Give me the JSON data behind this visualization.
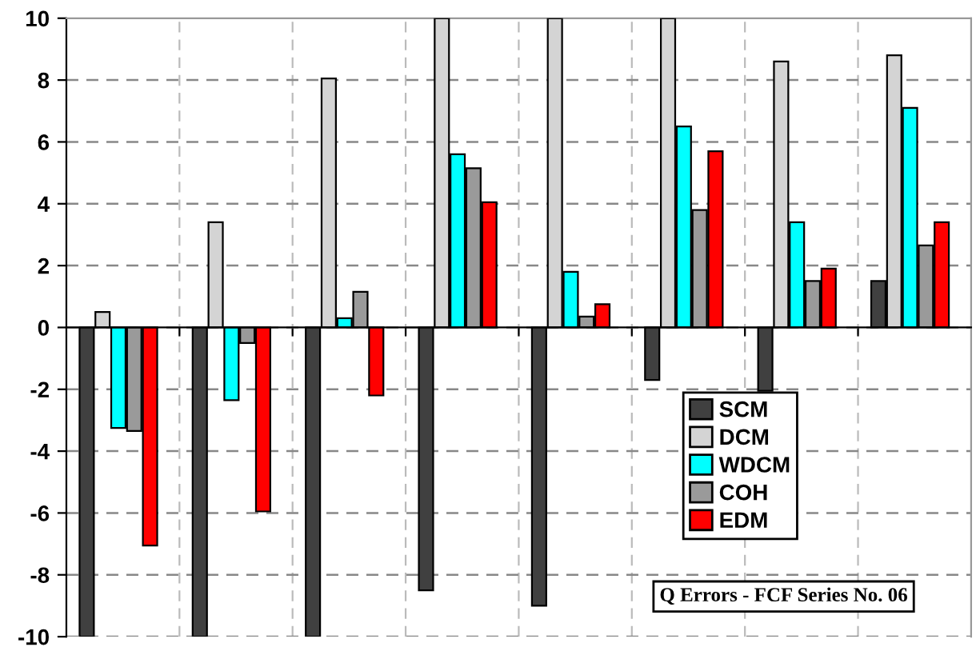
{
  "chart_data": {
    "type": "bar",
    "categories": [
      null,
      null,
      null,
      null,
      null,
      null,
      null,
      null
    ],
    "series": [
      {
        "name": "SCM",
        "color": "#404040",
        "values": [
          -10,
          -10,
          -10,
          -8.5,
          -9.0,
          -1.7,
          -2.05,
          1.5
        ]
      },
      {
        "name": "DCM",
        "color": "#d4d4d4",
        "values": [
          0.5,
          3.4,
          8.05,
          10,
          10,
          10,
          8.6,
          8.8
        ]
      },
      {
        "name": "WDCM",
        "color": "#00ffff",
        "values": [
          -3.25,
          -2.35,
          0.3,
          5.6,
          1.8,
          6.5,
          3.4,
          7.1
        ]
      },
      {
        "name": "COH",
        "color": "#9a9a9a",
        "values": [
          -3.35,
          -0.5,
          1.15,
          5.15,
          0.35,
          3.8,
          1.5,
          2.65
        ]
      },
      {
        "name": "EDM",
        "color": "#ff0000",
        "values": [
          -7.05,
          -5.95,
          -2.2,
          4.05,
          0.75,
          5.7,
          1.9,
          3.4
        ]
      }
    ],
    "ylim": [
      -10,
      10
    ],
    "yticks": [
      -10,
      -8,
      -6,
      -4,
      -2,
      0,
      2,
      4,
      6,
      8,
      10
    ],
    "grid": true,
    "legend": "bottom right",
    "annotations": [
      "Q Errors - FCF Series No. 06"
    ]
  }
}
